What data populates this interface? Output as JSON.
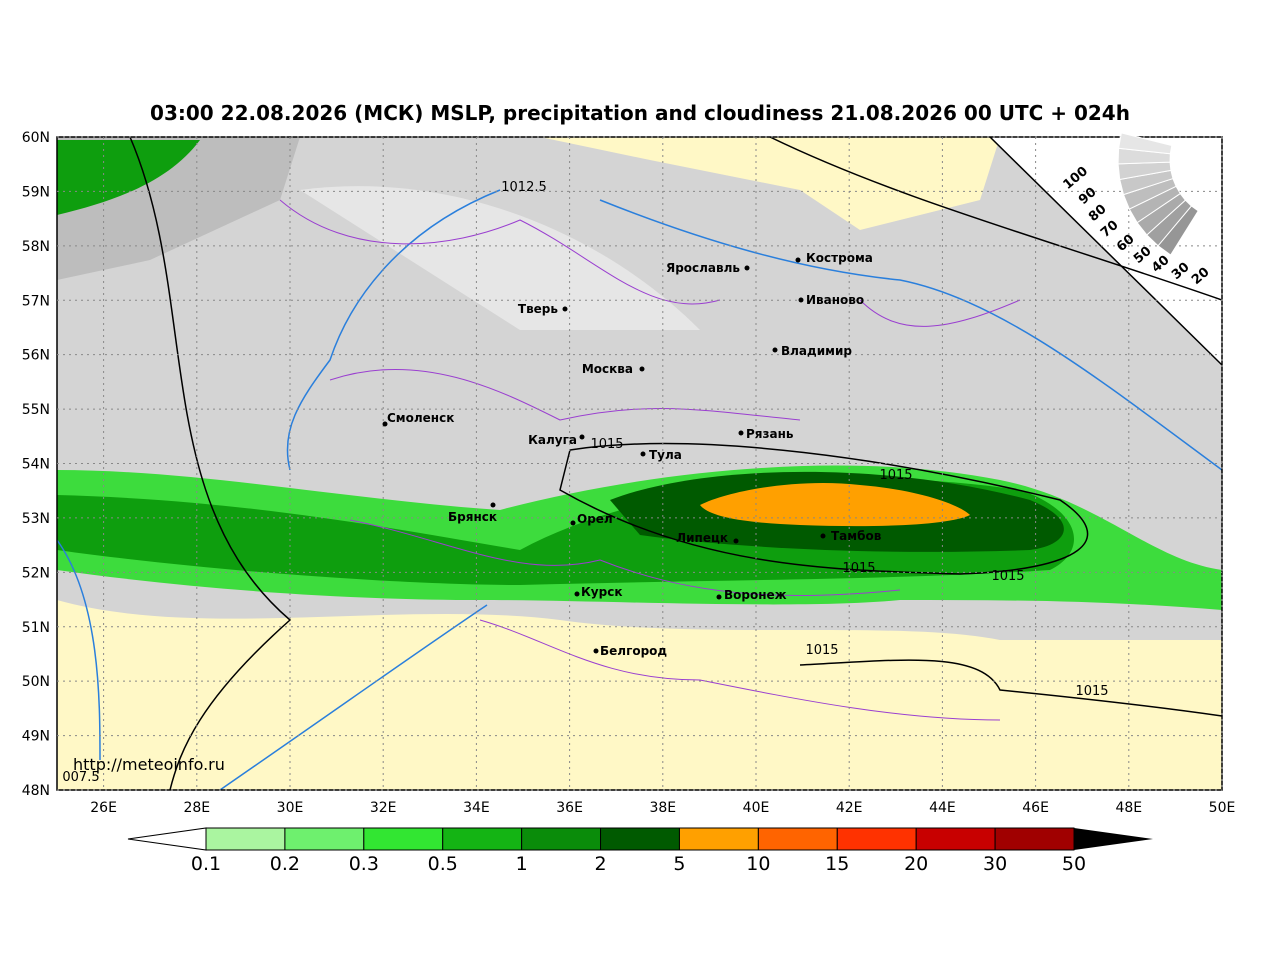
{
  "title": "03:00 22.08.2026 (МСК) MSLP, precipitation and cloudiness 21.08.2026 00 UTC + 024h",
  "lat_labels": [
    "60N",
    "59N",
    "58N",
    "57N",
    "56N",
    "55N",
    "54N",
    "53N",
    "52N",
    "51N",
    "50N",
    "49N",
    "48N"
  ],
  "lon_labels": [
    "26E",
    "28E",
    "30E",
    "32E",
    "34E",
    "36E",
    "38E",
    "40E",
    "42E",
    "44E",
    "46E",
    "48E",
    "50E"
  ],
  "cities": [
    "Кострома",
    "Ярославль",
    "Иваново",
    "Тверь",
    "Владимир",
    "Москва",
    "Смоленск",
    "Калуга",
    "Рязань",
    "Тула",
    "Брянск",
    "Орел",
    "Липецк",
    "Тамбов",
    "Курск",
    "Воронеж",
    "Белгород"
  ],
  "isobar_labels": [
    "1012.5",
    "1015",
    "1015",
    "1015",
    "1015",
    "1015",
    "1015",
    "007.5"
  ],
  "watermark": "http://meteoinfo.ru",
  "cloud_scale": [
    "100",
    "90",
    "80",
    "70",
    "60",
    "50",
    "40",
    "30",
    "20"
  ],
  "colorbar": [
    "0.1",
    "0.2",
    "0.3",
    "0.5",
    "1",
    "2",
    "5",
    "10",
    "15",
    "20",
    "30",
    "50"
  ]
}
